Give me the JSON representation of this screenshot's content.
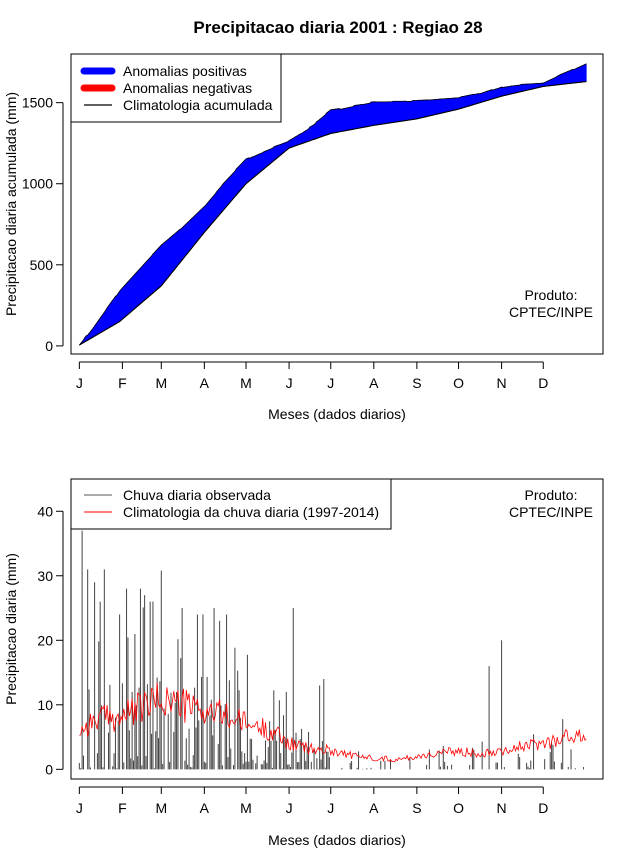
{
  "figure": {
    "title": "Precipitacao diaria 2001 : Regiao 28"
  },
  "chart_data": [
    {
      "type": "area",
      "title": "Precipitacao diaria 2001 : Regiao 28",
      "xlabel": "Meses (dados diarios)",
      "ylabel": "Precipitacao diaria acumulada (mm)",
      "ylim": [
        -50,
        1800
      ],
      "yticks": [
        0,
        500,
        1000,
        1500
      ],
      "xlim": [
        -5,
        378
      ],
      "month_ticks": [
        {
          "label": "J",
          "day": 1
        },
        {
          "label": "F",
          "day": 32
        },
        {
          "label": "M",
          "day": 60
        },
        {
          "label": "A",
          "day": 91
        },
        {
          "label": "M",
          "day": 121
        },
        {
          "label": "J",
          "day": 152
        },
        {
          "label": "J",
          "day": 182
        },
        {
          "label": "A",
          "day": 213
        },
        {
          "label": "S",
          "day": 244
        },
        {
          "label": "O",
          "day": 274
        },
        {
          "label": "N",
          "day": 305
        },
        {
          "label": "D",
          "day": 335
        }
      ],
      "legend": [
        {
          "label": "Anomalias positivas",
          "color": "#0000ff"
        },
        {
          "label": "Anomalias negativas",
          "color": "#ff0000"
        },
        {
          "label": "Climatologia acumulada",
          "color": "#000000"
        }
      ],
      "note_line1": "Produto:",
      "note_line2": "CPTEC/INPE",
      "climatology_keypoints": [
        [
          1,
          5
        ],
        [
          30,
          150
        ],
        [
          60,
          370
        ],
        [
          91,
          700
        ],
        [
          121,
          1000
        ],
        [
          152,
          1220
        ],
        [
          182,
          1310
        ],
        [
          213,
          1360
        ],
        [
          244,
          1400
        ],
        [
          274,
          1460
        ],
        [
          305,
          1540
        ],
        [
          335,
          1600
        ],
        [
          366,
          1630
        ]
      ],
      "observed_keypoints": [
        [
          1,
          5
        ],
        [
          10,
          100
        ],
        [
          20,
          220
        ],
        [
          30,
          340
        ],
        [
          45,
          480
        ],
        [
          60,
          620
        ],
        [
          75,
          730
        ],
        [
          91,
          860
        ],
        [
          105,
          1000
        ],
        [
          121,
          1150
        ],
        [
          135,
          1200
        ],
        [
          152,
          1260
        ],
        [
          170,
          1360
        ],
        [
          182,
          1450
        ],
        [
          200,
          1480
        ],
        [
          213,
          1500
        ],
        [
          244,
          1510
        ],
        [
          274,
          1530
        ],
        [
          290,
          1560
        ],
        [
          305,
          1600
        ],
        [
          320,
          1610
        ],
        [
          335,
          1620
        ],
        [
          350,
          1680
        ],
        [
          366,
          1740
        ]
      ]
    },
    {
      "type": "line",
      "xlabel": "Meses (dados diarios)",
      "ylabel": "Precipitacao diaria (mm)",
      "ylim": [
        -1.5,
        45
      ],
      "yticks": [
        0,
        10,
        20,
        30,
        40
      ],
      "xlim": [
        -5,
        378
      ],
      "month_ticks": [
        {
          "label": "J",
          "day": 1
        },
        {
          "label": "F",
          "day": 32
        },
        {
          "label": "M",
          "day": 60
        },
        {
          "label": "A",
          "day": 91
        },
        {
          "label": "M",
          "day": 121
        },
        {
          "label": "J",
          "day": 152
        },
        {
          "label": "J",
          "day": 182
        },
        {
          "label": "A",
          "day": 213
        },
        {
          "label": "S",
          "day": 244
        },
        {
          "label": "O",
          "day": 274
        },
        {
          "label": "N",
          "day": 305
        },
        {
          "label": "D",
          "day": 335
        }
      ],
      "legend": [
        {
          "label": "Chuva diaria observada",
          "color": "#555555"
        },
        {
          "label": "Climatologia da chuva diaria (1997-2014)",
          "color": "#ff0000"
        }
      ],
      "note_line1": "Produto:",
      "note_line2": "CPTEC/INPE",
      "daily_peaks": [
        {
          "day": 3,
          "value": 37
        },
        {
          "day": 7,
          "value": 31
        },
        {
          "day": 12,
          "value": 29
        },
        {
          "day": 16,
          "value": 26
        },
        {
          "day": 19,
          "value": 31
        },
        {
          "day": 30,
          "value": 24
        },
        {
          "day": 35,
          "value": 28
        },
        {
          "day": 45,
          "value": 28
        },
        {
          "day": 48,
          "value": 27
        },
        {
          "day": 52,
          "value": 26
        },
        {
          "day": 54,
          "value": 26
        },
        {
          "day": 75,
          "value": 25
        },
        {
          "day": 86,
          "value": 24
        },
        {
          "day": 90,
          "value": 24
        },
        {
          "day": 98,
          "value": 25
        },
        {
          "day": 102,
          "value": 23
        },
        {
          "day": 107,
          "value": 24
        },
        {
          "day": 150,
          "value": 12
        },
        {
          "day": 155,
          "value": 25
        },
        {
          "day": 174,
          "value": 13
        },
        {
          "day": 177,
          "value": 14
        },
        {
          "day": 305,
          "value": 20
        },
        {
          "day": 296,
          "value": 16
        }
      ],
      "climatology_keypoints": [
        [
          1,
          6
        ],
        [
          15,
          8
        ],
        [
          30,
          8
        ],
        [
          45,
          9.5
        ],
        [
          60,
          11
        ],
        [
          75,
          10
        ],
        [
          91,
          9
        ],
        [
          105,
          8.5
        ],
        [
          121,
          7
        ],
        [
          140,
          6
        ],
        [
          152,
          4
        ],
        [
          170,
          3
        ],
        [
          182,
          3
        ],
        [
          200,
          2
        ],
        [
          213,
          1.8
        ],
        [
          230,
          1.5
        ],
        [
          244,
          2
        ],
        [
          260,
          2.5
        ],
        [
          274,
          2.8
        ],
        [
          290,
          2.5
        ],
        [
          305,
          3
        ],
        [
          320,
          3.5
        ],
        [
          335,
          4
        ],
        [
          350,
          5
        ],
        [
          366,
          5
        ]
      ]
    }
  ]
}
